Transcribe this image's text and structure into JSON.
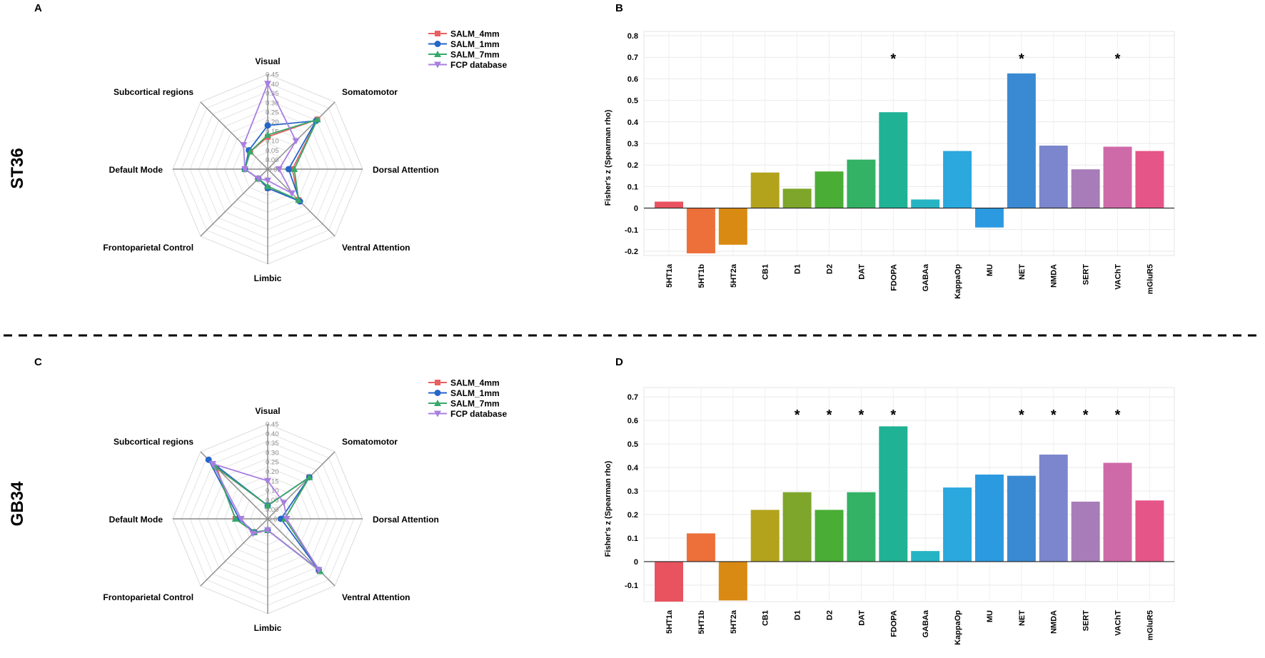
{
  "panel_labels": [
    "A",
    "B",
    "C",
    "D"
  ],
  "row_labels": [
    "ST36",
    "GB34"
  ],
  "colors": {
    "SALM_4mm": "#e8605f",
    "SALM_1mm": "#2566c8",
    "SALM_7mm": "#38a86a",
    "FCP database": "#a87fe0"
  },
  "chart_data": [
    {
      "panel": "A",
      "type": "radar",
      "axes": [
        "Visual",
        "Somatomotor",
        "Dorsal Attention",
        "Ventral Attention",
        "Limbic",
        "Frontoparietal Control",
        "Default Mode",
        "Subcortical regions"
      ],
      "r_ticks": [
        "-0.05",
        "0.00",
        "0.05",
        "0.10",
        "0.15",
        "0.20",
        "0.25",
        "0.30",
        "0.35",
        "0.40",
        "0.45"
      ],
      "rlim": [
        -0.05,
        0.45
      ],
      "legend": {
        "position": "top-right",
        "entries": [
          "SALM_4mm",
          "SALM_1mm",
          "SALM_7mm",
          "FCP database"
        ]
      },
      "series": [
        {
          "name": "SALM_4mm",
          "marker": "square",
          "values": [
            0.12,
            0.32,
            0.08,
            0.18,
            0.05,
            0.02,
            0.07,
            0.08
          ]
        },
        {
          "name": "SALM_1mm",
          "marker": "circle",
          "values": [
            0.18,
            0.31,
            0.06,
            0.19,
            0.05,
            0.02,
            0.07,
            0.09
          ]
        },
        {
          "name": "SALM_7mm",
          "marker": "triangle-up",
          "values": [
            0.13,
            0.32,
            0.09,
            0.18,
            0.04,
            0.02,
            0.07,
            0.08
          ]
        },
        {
          "name": "FCP database",
          "marker": "triangle-down",
          "values": [
            0.4,
            0.16,
            0.01,
            0.13,
            0.01,
            0.02,
            0.07,
            0.13
          ]
        }
      ]
    },
    {
      "panel": "B",
      "type": "bar",
      "ylabel": "Fisher's z (Spearman rho)",
      "ylim": [
        -0.22,
        0.82
      ],
      "yticks": [
        -0.2,
        -0.1,
        0,
        0.1,
        0.2,
        0.3,
        0.4,
        0.5,
        0.6,
        0.7,
        0.8
      ],
      "categories": [
        "5HT1a",
        "5HT1b",
        "5HT2a",
        "CB1",
        "D1",
        "D2",
        "DAT",
        "FDOPA",
        "GABAa",
        "KappaOp",
        "MU",
        "NET",
        "NMDA",
        "SERT",
        "VAChT",
        "mGluR5"
      ],
      "values": [
        0.03,
        -0.21,
        -0.17,
        0.165,
        0.09,
        0.17,
        0.225,
        0.445,
        0.04,
        0.265,
        -0.09,
        0.625,
        0.29,
        0.18,
        0.285,
        0.265
      ],
      "significance_mark": "*",
      "significant": [
        "FDOPA",
        "NET",
        "VAChT"
      ],
      "bar_colors": [
        "#e8535f",
        "#ed6f3a",
        "#d98a12",
        "#b3a31c",
        "#7ea62a",
        "#4aad35",
        "#33b164",
        "#1fb294",
        "#26b4c4",
        "#2ba8de",
        "#2b9ae0",
        "#3a8ad3",
        "#7c86cc",
        "#a77cb8",
        "#cf6aa8",
        "#e65588"
      ]
    },
    {
      "panel": "C",
      "type": "radar",
      "axes": [
        "Visual",
        "Somatomotor",
        "Dorsal Attention",
        "Ventral Attention",
        "Limbic",
        "Frontoparietal Control",
        "Default Mode",
        "Subcortical regions"
      ],
      "r_ticks": [
        "-0.05",
        "0.00",
        "0.05",
        "0.10",
        "0.15",
        "0.20",
        "0.25",
        "0.30",
        "0.35",
        "0.40",
        "0.45"
      ],
      "rlim": [
        -0.05,
        0.45
      ],
      "legend": {
        "position": "top-right",
        "entries": [
          "SALM_4mm",
          "SALM_1mm",
          "SALM_7mm",
          "FCP database"
        ]
      },
      "series": [
        {
          "name": "SALM_4mm",
          "marker": "square",
          "values": [
            0.02,
            0.26,
            0.04,
            0.33,
            0.01,
            0.05,
            0.12,
            0.33
          ]
        },
        {
          "name": "SALM_1mm",
          "marker": "circle",
          "values": [
            0.02,
            0.26,
            0.02,
            0.33,
            0.01,
            0.05,
            0.1,
            0.39
          ]
        },
        {
          "name": "SALM_7mm",
          "marker": "triangle-up",
          "values": [
            0.02,
            0.26,
            0.04,
            0.34,
            0.01,
            0.05,
            0.12,
            0.34
          ]
        },
        {
          "name": "FCP database",
          "marker": "triangle-down",
          "values": [
            0.15,
            0.07,
            0.05,
            0.33,
            0.01,
            0.06,
            0.09,
            0.36
          ]
        }
      ]
    },
    {
      "panel": "D",
      "type": "bar",
      "ylabel": "Fisher's z (Spearman rho)",
      "ylim": [
        -0.17,
        0.74
      ],
      "yticks": [
        -0.1,
        0,
        0.1,
        0.2,
        0.3,
        0.4,
        0.5,
        0.6,
        0.7
      ],
      "categories": [
        "5HT1a",
        "5HT1b",
        "5HT2a",
        "CB1",
        "D1",
        "D2",
        "DAT",
        "FDOPA",
        "GABAa",
        "KappaOp",
        "MU",
        "NET",
        "NMDA",
        "SERT",
        "VAChT",
        "mGluR5"
      ],
      "values": [
        -0.17,
        0.12,
        -0.165,
        0.22,
        0.295,
        0.22,
        0.295,
        0.575,
        0.045,
        0.315,
        0.37,
        0.365,
        0.455,
        0.255,
        0.42,
        0.26
      ],
      "significance_mark": "*",
      "significant": [
        "D1",
        "D2",
        "DAT",
        "FDOPA",
        "NET",
        "NMDA",
        "SERT",
        "VAChT"
      ],
      "bar_colors": [
        "#e8535f",
        "#ed6f3a",
        "#d98a12",
        "#b3a31c",
        "#7ea62a",
        "#4aad35",
        "#33b164",
        "#1fb294",
        "#26b4c4",
        "#2ba8de",
        "#2b9ae0",
        "#3a8ad3",
        "#7c86cc",
        "#a77cb8",
        "#cf6aa8",
        "#e65588"
      ]
    }
  ]
}
